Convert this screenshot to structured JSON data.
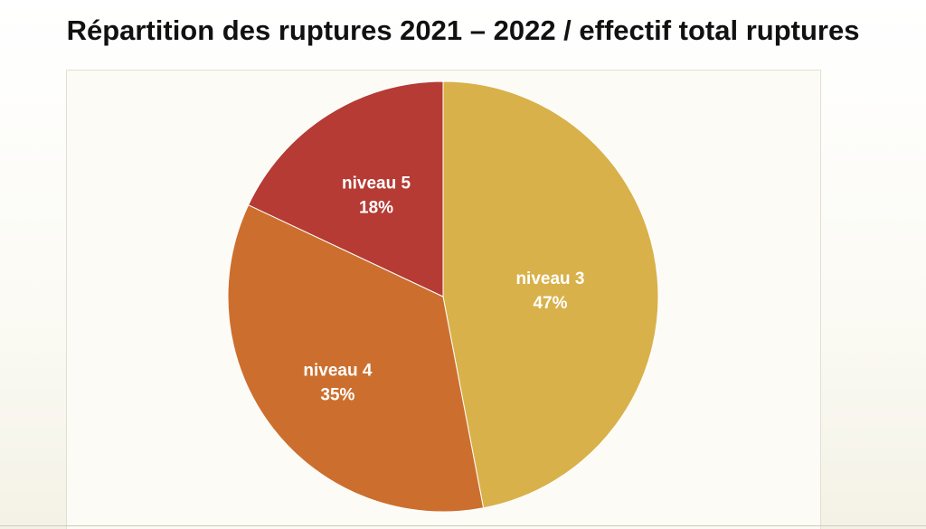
{
  "title": "Répartition des ruptures 2021 – 2022 / effectif total ruptures",
  "chart_data": {
    "type": "pie",
    "title": "Répartition des ruptures 2021 – 2022 / effectif total ruptures",
    "slices": [
      {
        "name": "niveau 3",
        "value": 47,
        "label": "47%",
        "color": "#d9b14a"
      },
      {
        "name": "niveau 4",
        "value": 35,
        "label": "35%",
        "color": "#cc6f2e"
      },
      {
        "name": "niveau 5",
        "value": 18,
        "label": "18%",
        "color": "#b53b34"
      }
    ],
    "start_angle_deg": 0,
    "direction": "clockwise",
    "legend": "none"
  }
}
